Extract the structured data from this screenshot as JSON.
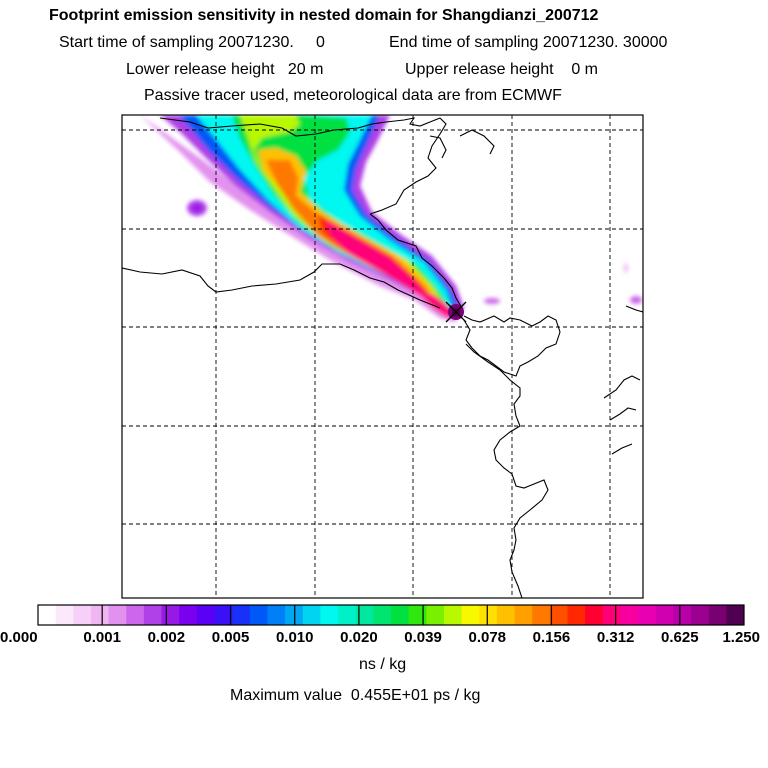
{
  "header": {
    "title": "Footprint emission sensitivity in nested domain for Shangdianzi_200712",
    "line2_a": "Start time of sampling 20071230.     0",
    "line2_b": "End time of sampling 20071230. 30000",
    "line3_a": "Lower release height   20 m",
    "line3_b": "Upper release height    0 m",
    "line4": "Passive tracer used, meteorological data are from ECMWF"
  },
  "colorbar": {
    "colors": [
      "#ffffff",
      "#fbe8fb",
      "#f6d0f6",
      "#f0b6f2",
      "#e292ee",
      "#cc66ea",
      "#b040e8",
      "#9818e6",
      "#7a00f0",
      "#5a00f4",
      "#3a10f6",
      "#1830f8",
      "#0058f8",
      "#0080f8",
      "#00a8f4",
      "#00d4f0",
      "#00f8f0",
      "#00f0c8",
      "#00e8a0",
      "#00e470",
      "#00e040",
      "#30e810",
      "#78f000",
      "#b8f800",
      "#f8f800",
      "#ffe000",
      "#ffc000",
      "#ffa000",
      "#ff7800",
      "#ff5000",
      "#ff2800",
      "#ff0030",
      "#ff0078",
      "#f800a0",
      "#e800b0",
      "#d000b0",
      "#b800a8",
      "#9c0090",
      "#780070",
      "#500050"
    ],
    "labels": [
      "0.000",
      "0.001",
      "0.002",
      "0.005",
      "0.010",
      "0.020",
      "0.039",
      "0.078",
      "0.156",
      "0.312",
      "0.625",
      "1.250"
    ],
    "units": "ns / kg"
  },
  "footer": {
    "max_value": "Maximum value  0.455E+01 ps / kg"
  },
  "map": {
    "receptor_marker": "x-marker",
    "grid": "dashed",
    "boundaries": "coastline and borders"
  }
}
